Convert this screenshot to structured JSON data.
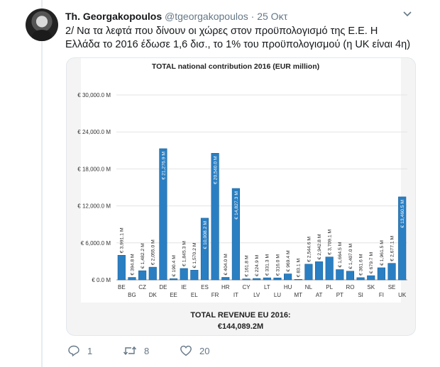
{
  "tweet": {
    "display_name": "Th. Georgakopoulos",
    "handle": "@tgeorgakopoulos",
    "separator": "·",
    "date": "25 Οκτ",
    "text_lines": [
      "2/ Να τα λεφτά που δίνουν οι χώρες στον προϋπολογισμό της Ε.Ε. Η",
      "Ελλάδα το 2016 έδωσε 1,6 δισ., το 1% του προϋπολογισμού (η UK είναι 4η)"
    ],
    "replies": "1",
    "retweets": "8",
    "likes": "20"
  },
  "icons": {
    "caret": "chevron-down-icon",
    "reply": "reply-icon",
    "retweet": "retweet-icon",
    "like": "heart-icon"
  },
  "colors": {
    "bar": "#2a7fc3",
    "bar_dark": "#1a5f96",
    "text_secondary": "#657786"
  },
  "chart_data": {
    "type": "bar",
    "title": "TOTAL national contribution 2016 (EUR million)",
    "categories": [
      "BE",
      "BG",
      "CZ",
      "DK",
      "DE",
      "EE",
      "IE",
      "EL",
      "ES",
      "FR",
      "HR",
      "IT",
      "CY",
      "LV",
      "LT",
      "LU",
      "HU",
      "MT",
      "NL",
      "AT",
      "PL",
      "PT",
      "RO",
      "SI",
      "SK",
      "FI",
      "SE",
      "UK"
    ],
    "values": [
      3991.1,
      394.8,
      1482.2,
      2055.0,
      21276.9,
      190.4,
      1845.3,
      1570.2,
      10008.2,
      20540.0,
      404.0,
      14827.3,
      161.8,
      224.9,
      331.3,
      316.0,
      969.4,
      83.1,
      2544.6,
      2942.8,
      3709.1,
      1664.5,
      1407.0,
      361.6,
      679.7,
      1961.5,
      2677.1,
      13460.5
    ],
    "data_labels": [
      "€ 3,991.1 M",
      "€ 394.8 M",
      "€ 1,482.2 M",
      "€ 2,055.0 M",
      "€ 21,276.9 M",
      "€ 190.4 M",
      "€ 1,845.3 M",
      "€ 1,570.2 M",
      "€ 10,008.2 M",
      "€ 20,540.0 M",
      "€ 404.0 M",
      "€ 14,827.3 M",
      "€ 161.8 M",
      "€ 224.9 M",
      "€ 331.3 M",
      "€ 316.0 M",
      "€ 969.4 M",
      "€ 83.1 M",
      "€ 2,544.6 M",
      "€ 2,942.8 M",
      "€ 3,709.1 M",
      "€ 1,664.5 M",
      "€ 1,407.0 M",
      "€ 361.6 M",
      "€ 679.7 M",
      "€ 1,961.5 M",
      "€ 2,677.1 M",
      "€ 13,460.5 M"
    ],
    "y_ticks": [
      0,
      6000,
      12000,
      18000,
      24000,
      30000
    ],
    "y_tick_labels": [
      "€ 0.0 M",
      "€ 6,000.0 M",
      "€ 12,000.0 M",
      "€ 18,000.0 M",
      "€ 24,000.0 M",
      "€ 30,000.0 M"
    ],
    "ylim": [
      0,
      30000
    ],
    "grid": true,
    "footer_title": "TOTAL REVENUE EU 2016:",
    "footer_value": "€144,089.2M"
  }
}
